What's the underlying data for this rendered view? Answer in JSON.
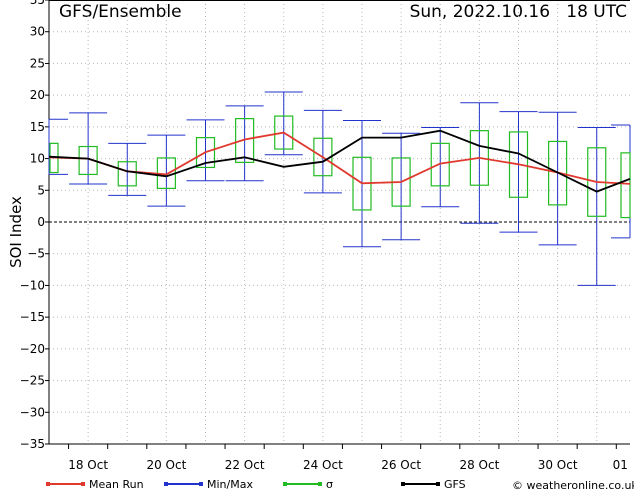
{
  "header": {
    "title": "GFS/Ensemble",
    "datetime": "Sun, 2022.10.16   18 UTC"
  },
  "credit": "© weatheronline.co.uk",
  "colors": {
    "mean": "#e03a2e",
    "minmax": "#2233cc",
    "sigma": "#22bb22",
    "gfs": "#000000",
    "grid": "#b8b8b8"
  },
  "chart_data": {
    "type": "line",
    "ylabel": "SOI Index",
    "ylim": [
      -35,
      35
    ],
    "yticks": [
      -35,
      -30,
      -25,
      -20,
      -15,
      -10,
      -5,
      0,
      5,
      10,
      15,
      20,
      25,
      30,
      35
    ],
    "xlim": [
      0,
      14.85
    ],
    "xticks": [
      {
        "x": 1,
        "label": "18 Oct"
      },
      {
        "x": 3,
        "label": "20 Oct"
      },
      {
        "x": 5,
        "label": "22 Oct"
      },
      {
        "x": 7,
        "label": "24 Oct"
      },
      {
        "x": 9,
        "label": "26 Oct"
      },
      {
        "x": 11,
        "label": "28 Oct"
      },
      {
        "x": 13,
        "label": "30 Oct"
      },
      {
        "x": 14.6,
        "label": "01"
      }
    ],
    "x": [
      0,
      1,
      2,
      3,
      4,
      5,
      6,
      7,
      8,
      9,
      10,
      11,
      12,
      13,
      14,
      14.85
    ],
    "series": [
      {
        "name": "Mean Run",
        "values": [
          10.2,
          10,
          8,
          7.5,
          11,
          13,
          14.1,
          10.2,
          6.1,
          6.3,
          9.2,
          10.1,
          9.1,
          7.8,
          6.3,
          6
        ]
      },
      {
        "name": "GFS",
        "values": [
          10.3,
          10,
          8,
          7.2,
          9.3,
          10.2,
          8.7,
          9.5,
          13.3,
          13.3,
          14.4,
          12,
          10.8,
          7.8,
          4.8,
          6.8
        ]
      }
    ],
    "minmax": [
      {
        "min": 7.5,
        "max": 16.2
      },
      {
        "min": 6.0,
        "max": 17.2
      },
      {
        "min": 4.2,
        "max": 12.4
      },
      {
        "min": 2.5,
        "max": 13.7
      },
      {
        "min": 6.5,
        "max": 16.1
      },
      {
        "min": 6.5,
        "max": 18.3
      },
      {
        "min": 10.6,
        "max": 20.5
      },
      {
        "min": 4.6,
        "max": 17.6
      },
      {
        "min": -3.9,
        "max": 16.0
      },
      {
        "min": -2.8,
        "max": 14.0
      },
      {
        "min": 2.4,
        "max": 14.9
      },
      {
        "min": -0.2,
        "max": 18.8
      },
      {
        "min": -1.6,
        "max": 17.4
      },
      {
        "min": -3.6,
        "max": 17.3
      },
      {
        "min": -10.0,
        "max": 14.9
      },
      {
        "min": -2.5,
        "max": 15.3
      }
    ],
    "sigma": [
      {
        "low": 7.8,
        "high": 12.4
      },
      {
        "low": 7.5,
        "high": 11.9
      },
      {
        "low": 5.7,
        "high": 9.5
      },
      {
        "low": 5.3,
        "high": 10.1
      },
      {
        "low": 8.6,
        "high": 13.3
      },
      {
        "low": 9.4,
        "high": 16.3
      },
      {
        "low": 11.5,
        "high": 16.7
      },
      {
        "low": 7.3,
        "high": 13.2
      },
      {
        "low": 1.9,
        "high": 10.2
      },
      {
        "low": 2.5,
        "high": 10.1
      },
      {
        "low": 5.7,
        "high": 12.4
      },
      {
        "low": 5.8,
        "high": 14.4
      },
      {
        "low": 3.9,
        "high": 14.2
      },
      {
        "low": 2.7,
        "high": 12.7
      },
      {
        "low": 0.9,
        "high": 11.7
      },
      {
        "low": 0.7,
        "high": 10.9
      }
    ],
    "legend": [
      {
        "label": "Mean Run",
        "key": "mean"
      },
      {
        "label": "Min/Max",
        "key": "minmax"
      },
      {
        "label": "σ",
        "key": "sigma"
      },
      {
        "label": "GFS",
        "key": "gfs"
      }
    ],
    "grid": true,
    "legend_position": "bottom"
  }
}
